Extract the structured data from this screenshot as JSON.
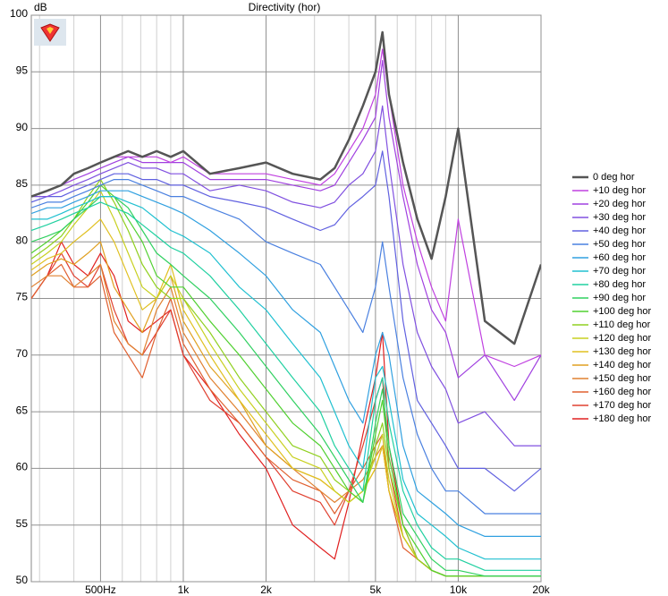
{
  "chart_data": {
    "type": "line",
    "title": "Directivity (hor)",
    "y_label": "dB",
    "xscale": "log",
    "grid": true,
    "legend": "right",
    "xlim": [
      280,
      20000
    ],
    "ylim": [
      50,
      100
    ],
    "xticks": [
      {
        "value": 500,
        "label": "500Hz"
      },
      {
        "value": 1000,
        "label": "1k"
      },
      {
        "value": 2000,
        "label": "2k"
      },
      {
        "value": 5000,
        "label": "5k"
      },
      {
        "value": 10000,
        "label": "10k"
      },
      {
        "value": 20000,
        "label": "20k"
      }
    ],
    "xminorticks": [
      300,
      400,
      600,
      700,
      800,
      900,
      3000,
      4000,
      6000,
      7000,
      8000,
      9000
    ],
    "yticks": [
      50,
      55,
      60,
      65,
      70,
      75,
      80,
      85,
      90,
      95,
      100
    ],
    "x": [
      280,
      320,
      360,
      400,
      450,
      500,
      560,
      630,
      710,
      800,
      900,
      1000,
      1250,
      1600,
      2000,
      2500,
      3150,
      3550,
      4000,
      4500,
      5000,
      5300,
      5600,
      6300,
      7100,
      8000,
      9000,
      10000,
      12500,
      16000,
      20000
    ],
    "series": [
      {
        "name": "0 deg hor",
        "color": "#555555",
        "values": [
          84,
          84.5,
          85,
          86,
          86.5,
          87,
          87.5,
          88,
          87.5,
          88,
          87.5,
          88,
          86,
          86.5,
          87,
          86,
          85.5,
          86.5,
          89,
          92,
          95,
          98.5,
          93,
          87,
          82,
          78.5,
          84,
          90,
          73,
          71,
          78
        ]
      },
      {
        "name": "+10 deg hor",
        "color": "#c040e0",
        "values": [
          84,
          84.5,
          85,
          86,
          86.5,
          87,
          87.5,
          87.5,
          87.5,
          87.5,
          87,
          87.5,
          86,
          86,
          86,
          85.5,
          85,
          86,
          88,
          90,
          93,
          97,
          93,
          85,
          80,
          76,
          73,
          82,
          70,
          69,
          70
        ]
      },
      {
        "name": "+20 deg hor",
        "color": "#a040e0",
        "values": [
          84,
          84.5,
          85,
          85.5,
          86,
          86.5,
          87,
          87.5,
          87,
          87,
          87,
          87,
          85.5,
          85.5,
          85.5,
          85,
          84.5,
          85,
          87,
          89,
          91,
          96,
          91,
          84,
          78,
          74,
          72,
          68,
          70,
          66,
          70
        ]
      },
      {
        "name": "+30 deg hor",
        "color": "#8050e0",
        "values": [
          84,
          84,
          84.5,
          85,
          85.5,
          86,
          86.5,
          87,
          86.5,
          86.5,
          86,
          86,
          84.5,
          85,
          84.5,
          83.5,
          83,
          83.5,
          85,
          86,
          88,
          92,
          87,
          78,
          72,
          69,
          67,
          64,
          65,
          62,
          62
        ]
      },
      {
        "name": "+40 deg hor",
        "color": "#6060e0",
        "values": [
          83.5,
          84,
          84,
          84.5,
          85,
          85.5,
          86,
          86,
          85.5,
          85.5,
          85,
          85,
          84,
          83.5,
          83,
          82,
          81,
          81.5,
          83,
          84,
          85,
          88,
          84,
          73,
          66,
          64,
          62,
          60,
          60,
          58,
          60
        ]
      },
      {
        "name": "+50 deg hor",
        "color": "#4a80e0",
        "values": [
          83,
          83.5,
          83.5,
          84,
          84.5,
          85,
          85.5,
          85.5,
          85,
          84.5,
          84,
          84,
          83,
          82,
          80,
          79,
          78,
          76,
          74,
          72,
          76,
          80,
          76,
          68,
          63,
          60,
          58,
          58,
          56,
          56,
          56
        ]
      },
      {
        "name": "+60 deg hor",
        "color": "#30a0e0",
        "values": [
          82.5,
          83,
          83,
          83.5,
          84,
          84.5,
          84.5,
          84.5,
          84,
          83.5,
          83,
          82.5,
          81,
          79,
          77,
          74,
          72,
          69,
          66,
          64,
          70,
          72,
          70,
          62,
          58,
          57,
          56,
          55,
          54,
          54,
          54
        ]
      },
      {
        "name": "+70 deg hor",
        "color": "#20c0d0",
        "values": [
          82,
          82,
          82.5,
          83,
          83.5,
          84,
          84,
          83.5,
          83,
          82,
          81,
          80.5,
          79,
          76,
          74,
          71,
          68,
          65,
          62,
          60,
          68,
          69,
          66,
          59,
          56,
          55,
          54,
          53,
          52,
          52,
          52
        ]
      },
      {
        "name": "+80 deg hor",
        "color": "#20d0a0",
        "values": [
          81,
          81.5,
          82,
          82.5,
          83,
          83.5,
          83,
          82.5,
          81.5,
          80.5,
          79.5,
          79,
          77,
          74,
          71,
          68,
          65,
          62,
          60,
          58,
          66,
          68,
          64,
          58,
          55,
          53,
          52,
          52,
          51,
          51,
          51
        ]
      },
      {
        "name": "+90 deg hor",
        "color": "#30d060",
        "values": [
          80,
          80.5,
          81,
          82,
          83,
          84,
          84,
          83,
          81,
          79,
          78,
          77,
          75,
          72,
          69,
          66,
          63,
          61,
          59,
          57,
          64,
          67,
          62,
          56,
          54,
          52,
          51,
          51,
          50.5,
          50.5,
          50.5
        ]
      },
      {
        "name": "+100 deg hor",
        "color": "#50d030",
        "values": [
          79,
          80,
          81,
          82,
          83.5,
          85,
          84,
          82,
          80,
          77,
          76,
          76,
          73,
          70,
          67,
          64,
          62,
          60,
          58,
          57,
          63,
          66,
          61,
          55,
          53,
          51,
          50.5,
          50.5,
          50.5,
          50.5,
          50.5
        ]
      },
      {
        "name": "+110 deg hor",
        "color": "#90d020",
        "values": [
          78.5,
          79.5,
          80.5,
          82,
          84,
          85.5,
          83.5,
          81,
          78,
          76,
          75,
          75,
          72,
          68,
          65,
          62,
          61,
          59,
          58,
          57,
          62,
          64,
          60,
          55,
          52,
          51,
          50.5,
          50.5,
          50.5,
          50.5,
          50.5
        ]
      },
      {
        "name": "+120 deg hor",
        "color": "#c8d020",
        "values": [
          78,
          79,
          80,
          81.5,
          83,
          84.5,
          82,
          79,
          76,
          75,
          77,
          75,
          71,
          67,
          64,
          61,
          60,
          58,
          57,
          58,
          61,
          63,
          59,
          54,
          52,
          51,
          50.5,
          50.5,
          50.5,
          50.5,
          50.5
        ]
      },
      {
        "name": "+130 deg hor",
        "color": "#e0c020",
        "values": [
          77.5,
          78.5,
          79,
          80,
          81,
          82,
          80,
          77,
          74,
          75,
          78,
          74,
          70,
          66,
          63,
          60,
          59,
          58,
          57,
          58,
          60,
          62,
          58,
          54,
          52,
          51,
          50.5,
          50.5,
          50.5,
          50.5,
          50.5
        ]
      },
      {
        "name": "+140 deg hor",
        "color": "#e0a020",
        "values": [
          77,
          78,
          78.5,
          78,
          79,
          80,
          76,
          74,
          72,
          75,
          77,
          73,
          69,
          66,
          62,
          60,
          59,
          58,
          57,
          58,
          60,
          62,
          58,
          54,
          52,
          51,
          50.5,
          50.5,
          50.5,
          50.5,
          50.5
        ]
      },
      {
        "name": "+150 deg hor",
        "color": "#e08030",
        "values": [
          76,
          77,
          77,
          76,
          77,
          78,
          73,
          71,
          70,
          74,
          76,
          72,
          68,
          65,
          62,
          60,
          58,
          57,
          58,
          59,
          61,
          62,
          58,
          54,
          52,
          51,
          50.5,
          50.5,
          50.5,
          50.5,
          50.5
        ]
      },
      {
        "name": "+160 deg hor",
        "color": "#e06030",
        "values": [
          75,
          77,
          78,
          76,
          76,
          77,
          72,
          70,
          68,
          72,
          75,
          71,
          67,
          64,
          61,
          59,
          58,
          56,
          58,
          60,
          62,
          63,
          58,
          53,
          52,
          51,
          50.5,
          50.5,
          50.5,
          50.5,
          50.5
        ]
      },
      {
        "name": "+170 deg hor",
        "color": "#e04030",
        "values": [
          75,
          77,
          79,
          77,
          76,
          78,
          74,
          71,
          70,
          72,
          74,
          70,
          66,
          64,
          61,
          58,
          57,
          55,
          58,
          62,
          66,
          68,
          60,
          54,
          52,
          51,
          50.5,
          50.5,
          50.5,
          50.5,
          50.5
        ]
      },
      {
        "name": "+180 deg hor",
        "color": "#e02020",
        "values": [
          75,
          77,
          80,
          78,
          77,
          79,
          77,
          73,
          72,
          73,
          74,
          70,
          67,
          63,
          60,
          55,
          53,
          52,
          57,
          63,
          68,
          72,
          62,
          55,
          52,
          51,
          50.5,
          50.5,
          50.5,
          50.5,
          50.5
        ]
      }
    ]
  }
}
